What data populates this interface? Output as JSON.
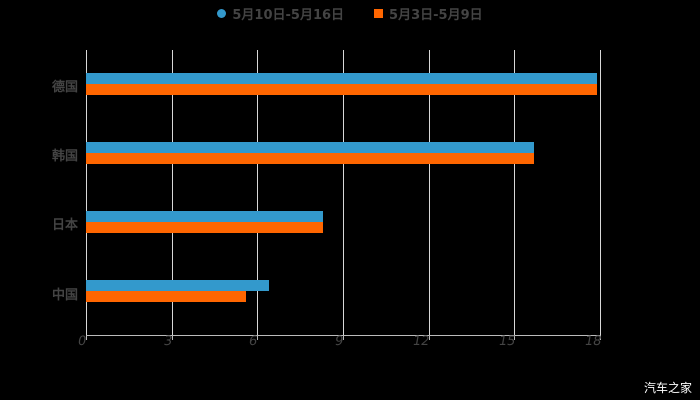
{
  "legend": [
    {
      "label": "5月10日-5月16日",
      "color": "#3399cc",
      "shape": "circle"
    },
    {
      "label": "5月3日-5月9日",
      "color": "#ff6600",
      "shape": "square"
    }
  ],
  "watermark": "汽车之家",
  "chart_data": {
    "type": "bar",
    "orientation": "horizontal",
    "title": "",
    "xlabel": "",
    "ylabel": "",
    "categories": [
      "德国",
      "韩国",
      "日本",
      "中国"
    ],
    "series": [
      {
        "name": "5月10日-5月16日",
        "color": "#3399cc",
        "values": [
          17.9,
          15.7,
          8.3,
          6.4
        ]
      },
      {
        "name": "5月3日-5月9日",
        "color": "#ff6600",
        "values": [
          17.9,
          15.7,
          8.3,
          5.6
        ]
      }
    ],
    "xlim": [
      0,
      18
    ],
    "xticks": [
      "0",
      "3",
      "6",
      "9",
      "12",
      "15",
      "18"
    ],
    "grid": true,
    "legend_position": "top"
  }
}
